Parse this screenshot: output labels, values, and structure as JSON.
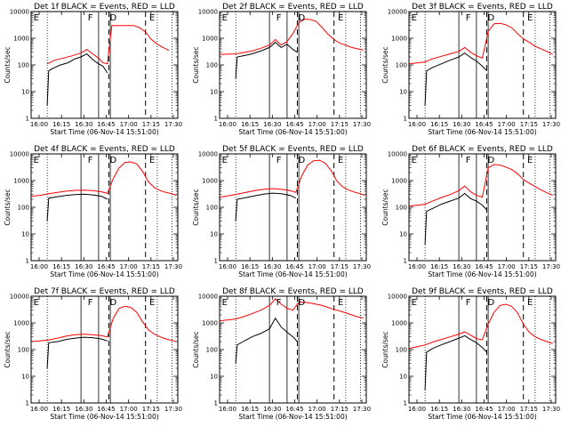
{
  "figure": {
    "x_tick_labels": [
      "16:00",
      "16:15",
      "16:30",
      "16:45",
      "17:00",
      "17:15",
      "17:30"
    ],
    "y_tick_labels": [
      "1",
      "10",
      "100",
      "1000",
      "10000"
    ],
    "x_axis_label": "Start Time (06-Nov-14 15:51:00)",
    "y_axis_label": "Counts/sec",
    "colors": {
      "events": "#000000",
      "lld": "#ff0000",
      "background": "#ffffff"
    }
  },
  "chart_data": [
    {
      "type": "line",
      "title": "Det 1f BLACK = Events, RED = LLD",
      "xlabel": "Start Time (06-Nov-14 15:51:00)",
      "ylabel": "Counts/sec",
      "xlim": [
        0,
        100
      ],
      "ylim": [
        1,
        10000
      ],
      "yscale": "log",
      "grid": false,
      "flags": [
        {
          "label": "E",
          "x": 1
        },
        {
          "label": "F",
          "x": 38
        },
        {
          "label": "D",
          "x": 53
        },
        {
          "label": "E",
          "x": 80
        }
      ],
      "dotted_lines": [
        11,
        86,
        96
      ],
      "solid_lines": [
        34,
        46,
        54
      ],
      "dashed_lines": [
        53,
        78
      ],
      "series": [
        {
          "name": "Events",
          "color": "#000000",
          "x": [
            11,
            12,
            14,
            20,
            25,
            30,
            34,
            38,
            42,
            46,
            49,
            52
          ],
          "y": [
            3,
            60,
            70,
            100,
            120,
            170,
            200,
            260,
            160,
            110,
            90,
            50
          ]
        },
        {
          "name": "LLD",
          "color": "#ff0000",
          "x": [
            11,
            16,
            22,
            28,
            34,
            38,
            42,
            46,
            49,
            52,
            55,
            58,
            62,
            66,
            70,
            74,
            78,
            82,
            86,
            90,
            94
          ],
          "y": [
            110,
            150,
            180,
            220,
            280,
            380,
            260,
            180,
            120,
            110,
            3000,
            3000,
            3000,
            3000,
            3000,
            2500,
            1700,
            900,
            600,
            450,
            350
          ]
        }
      ]
    },
    {
      "type": "line",
      "title": "Det 2f BLACK = Events, RED = LLD",
      "xlabel": "Start Time (06-Nov-14 15:51:00)",
      "ylabel": "Counts/sec",
      "xlim": [
        0,
        100
      ],
      "ylim": [
        1,
        10000
      ],
      "yscale": "log",
      "grid": false,
      "flags": [
        {
          "label": "E",
          "x": 1
        },
        {
          "label": "F",
          "x": 38
        },
        {
          "label": "D",
          "x": 53
        },
        {
          "label": "E",
          "x": 80
        }
      ],
      "dotted_lines": [
        11,
        86,
        96
      ],
      "solid_lines": [
        34,
        46,
        54
      ],
      "dashed_lines": [
        53,
        78
      ],
      "series": [
        {
          "name": "Events",
          "color": "#000000",
          "x": [
            11,
            12,
            16,
            22,
            28,
            34,
            38,
            42,
            46,
            50,
            53
          ],
          "y": [
            30,
            200,
            220,
            260,
            330,
            450,
            700,
            450,
            600,
            380,
            300
          ]
        },
        {
          "name": "LLD",
          "color": "#ff0000",
          "x": [
            0,
            11,
            16,
            22,
            28,
            34,
            38,
            42,
            46,
            50,
            54,
            58,
            62,
            66,
            70,
            74,
            78,
            82,
            86,
            90,
            94,
            98
          ],
          "y": [
            250,
            260,
            290,
            330,
            420,
            560,
            900,
            560,
            750,
            1500,
            3800,
            5200,
            5000,
            4200,
            2500,
            1400,
            900,
            650,
            550,
            450,
            400,
            360
          ]
        }
      ]
    },
    {
      "type": "line",
      "title": "Det 3f BLACK = Events, RED = LLD",
      "xlabel": "Start Time (06-Nov-14 15:51:00)",
      "ylabel": "Counts/sec",
      "xlim": [
        0,
        100
      ],
      "ylim": [
        1,
        10000
      ],
      "yscale": "log",
      "grid": false,
      "flags": [
        {
          "label": "E",
          "x": 1
        },
        {
          "label": "F",
          "x": 38
        },
        {
          "label": "D",
          "x": 53
        },
        {
          "label": "E",
          "x": 80
        }
      ],
      "dotted_lines": [
        11,
        86,
        96
      ],
      "solid_lines": [
        34,
        46,
        54
      ],
      "dashed_lines": [
        53,
        78
      ],
      "series": [
        {
          "name": "Events",
          "color": "#000000",
          "x": [
            11,
            12,
            16,
            22,
            28,
            34,
            38,
            42,
            46,
            50,
            53
          ],
          "y": [
            3,
            60,
            80,
            110,
            150,
            200,
            280,
            190,
            140,
            90,
            60
          ]
        },
        {
          "name": "LLD",
          "color": "#ff0000",
          "x": [
            0,
            6,
            11,
            16,
            22,
            28,
            34,
            38,
            42,
            46,
            50,
            54,
            58,
            62,
            66,
            70,
            74,
            78,
            82,
            86,
            90,
            94,
            98
          ],
          "y": [
            110,
            120,
            130,
            170,
            210,
            260,
            320,
            450,
            300,
            220,
            180,
            1800,
            3500,
            3600,
            3200,
            2500,
            1500,
            950,
            700,
            500,
            400,
            320,
            250
          ]
        }
      ]
    },
    {
      "type": "line",
      "title": "Det 4f BLACK = Events, RED = LLD",
      "xlabel": "Start Time (06-Nov-14 15:51:00)",
      "ylabel": "Counts/sec",
      "xlim": [
        0,
        100
      ],
      "ylim": [
        1,
        10000
      ],
      "yscale": "log",
      "grid": false,
      "flags": [
        {
          "label": "E",
          "x": 1
        },
        {
          "label": "F",
          "x": 38
        },
        {
          "label": "D",
          "x": 53
        },
        {
          "label": "E",
          "x": 80
        }
      ],
      "dotted_lines": [
        11,
        86,
        96
      ],
      "solid_lines": [
        34,
        46,
        54
      ],
      "dashed_lines": [
        53,
        78
      ],
      "series": [
        {
          "name": "Events",
          "color": "#000000",
          "x": [
            11,
            12,
            18,
            24,
            30,
            36,
            42,
            48,
            52
          ],
          "y": [
            30,
            220,
            250,
            280,
            300,
            310,
            290,
            260,
            200
          ]
        },
        {
          "name": "LLD",
          "color": "#ff0000",
          "x": [
            0,
            6,
            12,
            18,
            24,
            30,
            36,
            42,
            48,
            52,
            56,
            60,
            64,
            68,
            72,
            76,
            80,
            84,
            88,
            92,
            96,
            99
          ],
          "y": [
            260,
            280,
            320,
            360,
            400,
            430,
            440,
            420,
            380,
            330,
            1200,
            3000,
            4800,
            5000,
            4200,
            2200,
            900,
            550,
            420,
            360,
            320,
            280
          ]
        }
      ]
    },
    {
      "type": "line",
      "title": "Det 5f BLACK = Events, RED = LLD",
      "xlabel": "Start Time (06-Nov-14 15:51:00)",
      "ylabel": "Counts/sec",
      "xlim": [
        0,
        100
      ],
      "ylim": [
        1,
        10000
      ],
      "yscale": "log",
      "grid": false,
      "flags": [
        {
          "label": "E",
          "x": 1
        },
        {
          "label": "F",
          "x": 38
        },
        {
          "label": "D",
          "x": 53
        },
        {
          "label": "E",
          "x": 80
        }
      ],
      "dotted_lines": [
        11,
        86,
        96
      ],
      "solid_lines": [
        34,
        46,
        54
      ],
      "dashed_lines": [
        53,
        78
      ],
      "series": [
        {
          "name": "Events",
          "color": "#000000",
          "x": [
            11,
            12,
            18,
            24,
            30,
            36,
            42,
            48,
            52
          ],
          "y": [
            30,
            200,
            230,
            270,
            310,
            340,
            320,
            280,
            220
          ]
        },
        {
          "name": "LLD",
          "color": "#ff0000",
          "x": [
            0,
            6,
            12,
            18,
            24,
            30,
            36,
            42,
            48,
            52,
            56,
            60,
            64,
            68,
            72,
            76,
            80,
            84,
            88,
            92,
            96,
            99
          ],
          "y": [
            240,
            270,
            310,
            360,
            420,
            470,
            500,
            470,
            420,
            360,
            1500,
            3800,
            5500,
            5800,
            4500,
            2400,
            950,
            580,
            440,
            370,
            320,
            280
          ]
        }
      ]
    },
    {
      "type": "line",
      "title": "Det 6f BLACK = Events, RED = LLD",
      "xlabel": "Start Time (06-Nov-14 15:51:00)",
      "ylabel": "Counts/sec",
      "xlim": [
        0,
        100
      ],
      "ylim": [
        1,
        10000
      ],
      "yscale": "log",
      "grid": false,
      "flags": [
        {
          "label": "E",
          "x": 1
        },
        {
          "label": "F",
          "x": 38
        },
        {
          "label": "D",
          "x": 53
        },
        {
          "label": "E",
          "x": 80
        }
      ],
      "dotted_lines": [
        11,
        86,
        96
      ],
      "solid_lines": [
        34,
        46,
        54
      ],
      "dashed_lines": [
        53,
        78
      ],
      "series": [
        {
          "name": "Events",
          "color": "#000000",
          "x": [
            11,
            12,
            16,
            22,
            28,
            34,
            38,
            42,
            46,
            50,
            53
          ],
          "y": [
            4,
            70,
            90,
            130,
            170,
            220,
            330,
            210,
            170,
            120,
            80
          ]
        },
        {
          "name": "LLD",
          "color": "#ff0000",
          "x": [
            0,
            6,
            11,
            16,
            22,
            28,
            34,
            38,
            42,
            46,
            50,
            54,
            58,
            62,
            66,
            70,
            74,
            78,
            82,
            86,
            90,
            94,
            98
          ],
          "y": [
            110,
            120,
            130,
            170,
            230,
            300,
            420,
            620,
            380,
            280,
            240,
            3000,
            4000,
            3800,
            3200,
            2600,
            1800,
            1100,
            800,
            600,
            450,
            350,
            280
          ]
        }
      ]
    },
    {
      "type": "line",
      "title": "Det 7f BLACK = Events, RED = LLD",
      "xlabel": "Start Time (06-Nov-14 15:51:00)",
      "ylabel": "Counts/sec",
      "xlim": [
        0,
        100
      ],
      "ylim": [
        1,
        10000
      ],
      "yscale": "log",
      "grid": false,
      "flags": [
        {
          "label": "E",
          "x": 1
        },
        {
          "label": "F",
          "x": 38
        },
        {
          "label": "D",
          "x": 53
        },
        {
          "label": "E",
          "x": 80
        }
      ],
      "dotted_lines": [
        11,
        86,
        96
      ],
      "solid_lines": [
        34,
        46,
        54
      ],
      "dashed_lines": [
        53,
        78
      ],
      "series": [
        {
          "name": "Events",
          "color": "#000000",
          "x": [
            11,
            12,
            18,
            24,
            30,
            36,
            42,
            48,
            52
          ],
          "y": [
            20,
            180,
            200,
            240,
            270,
            290,
            280,
            250,
            210
          ]
        },
        {
          "name": "LLD",
          "color": "#ff0000",
          "x": [
            0,
            6,
            12,
            18,
            24,
            30,
            36,
            42,
            48,
            52,
            56,
            60,
            64,
            68,
            72,
            76,
            80,
            84,
            88,
            92,
            96,
            99
          ],
          "y": [
            200,
            210,
            230,
            270,
            320,
            360,
            380,
            360,
            330,
            300,
            1500,
            3500,
            4200,
            3800,
            2500,
            1100,
            550,
            380,
            300,
            250,
            220,
            200
          ]
        }
      ]
    },
    {
      "type": "line",
      "title": "Det 8f BLACK = Events, RED = LLD",
      "xlabel": "Start Time (06-Nov-14 15:51:00)",
      "ylabel": "Counts/sec",
      "xlim": [
        0,
        100
      ],
      "ylim": [
        1,
        10000
      ],
      "yscale": "log",
      "grid": false,
      "flags": [
        {
          "label": "E",
          "x": 1
        },
        {
          "label": "F",
          "x": 38
        },
        {
          "label": "D",
          "x": 53
        },
        {
          "label": "E",
          "x": 80
        }
      ],
      "dotted_lines": [
        11,
        86,
        96
      ],
      "solid_lines": [
        34,
        46,
        54
      ],
      "dashed_lines": [
        53,
        78
      ],
      "series": [
        {
          "name": "Events",
          "color": "#000000",
          "x": [
            11,
            12,
            16,
            22,
            28,
            34,
            38,
            42,
            46,
            50,
            53
          ],
          "y": [
            30,
            150,
            200,
            300,
            400,
            600,
            1500,
            700,
            450,
            300,
            200
          ]
        },
        {
          "name": "LLD",
          "color": "#ff0000",
          "x": [
            0,
            6,
            11,
            16,
            22,
            28,
            34,
            38,
            42,
            46,
            50,
            54,
            58,
            62,
            66,
            70,
            74,
            78,
            82,
            86,
            90,
            94,
            98
          ],
          "y": [
            1200,
            1300,
            1400,
            1700,
            2200,
            3000,
            4500,
            8000,
            5000,
            3500,
            3000,
            6000,
            6000,
            5500,
            5000,
            4500,
            3800,
            3200,
            2800,
            2400,
            2000,
            1700,
            1500
          ]
        }
      ]
    },
    {
      "type": "line",
      "title": "Det 9f BLACK = Events, RED = LLD",
      "xlabel": "Start Time (06-Nov-14 15:51:00)",
      "ylabel": "Counts/sec",
      "xlim": [
        0,
        100
      ],
      "ylim": [
        1,
        10000
      ],
      "yscale": "log",
      "grid": false,
      "flags": [
        {
          "label": "E",
          "x": 1
        },
        {
          "label": "F",
          "x": 38
        },
        {
          "label": "D",
          "x": 53
        },
        {
          "label": "E",
          "x": 80
        }
      ],
      "dotted_lines": [
        11,
        86,
        96
      ],
      "solid_lines": [
        34,
        46,
        54
      ],
      "dashed_lines": [
        53,
        78
      ],
      "series": [
        {
          "name": "Events",
          "color": "#000000",
          "x": [
            11,
            12,
            16,
            22,
            28,
            34,
            38,
            42,
            46,
            50,
            53
          ],
          "y": [
            3,
            80,
            110,
            150,
            200,
            270,
            330,
            240,
            180,
            120,
            80
          ]
        },
        {
          "name": "LLD",
          "color": "#ff0000",
          "x": [
            0,
            6,
            11,
            16,
            22,
            28,
            34,
            38,
            42,
            46,
            50,
            54,
            58,
            62,
            66,
            70,
            74,
            78,
            82,
            86,
            90,
            94,
            98
          ],
          "y": [
            110,
            130,
            150,
            190,
            240,
            300,
            380,
            460,
            350,
            260,
            230,
            900,
            2500,
            4500,
            5000,
            4200,
            2400,
            900,
            450,
            300,
            240,
            200,
            170
          ]
        }
      ]
    }
  ]
}
